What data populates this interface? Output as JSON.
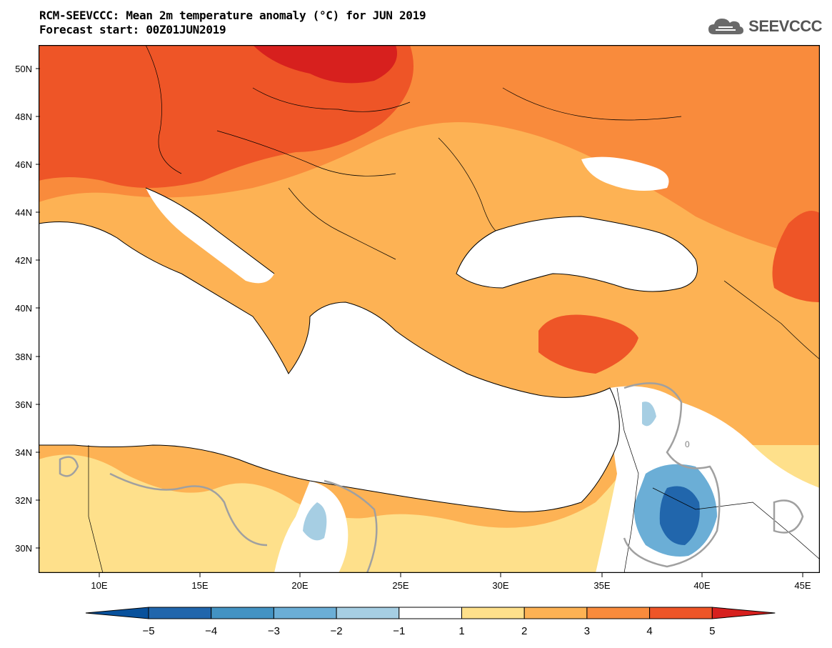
{
  "title": {
    "line1": "RCM-SEEVCCC: Mean 2m temperature anomaly (°C) for JUN 2019",
    "line2": "Forecast start: 00Z01JUN2019"
  },
  "logo": {
    "text": "SEEVCCC",
    "icon": "cloud-icon"
  },
  "map": {
    "lat_labels": [
      "50N",
      "48N",
      "46N",
      "44N",
      "42N",
      "40N",
      "38N",
      "36N",
      "34N",
      "32N",
      "30N"
    ],
    "lon_labels": [
      "10E",
      "15E",
      "20E",
      "25E",
      "30E",
      "35E",
      "40E",
      "45E"
    ],
    "contour_label": "0"
  },
  "legend": {
    "levels": [
      "-5",
      "-4",
      "-3",
      "-2",
      "-1",
      "1",
      "2",
      "3",
      "4",
      "5"
    ],
    "colors": [
      "#08519c",
      "#2166ac",
      "#4393c3",
      "#6baed6",
      "#a6cee3",
      "#ffffff",
      "#fee08b",
      "#fdb254",
      "#f98b3c",
      "#ee5527",
      "#d7201e"
    ]
  }
}
